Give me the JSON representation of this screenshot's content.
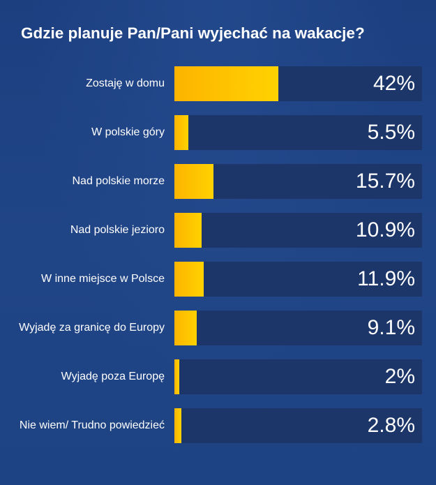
{
  "chart_data": {
    "type": "bar",
    "title": "Gdzie planuje Pan/Pani wyjechać na wakacje?",
    "categories": [
      "Zostaję w domu",
      "W polskie góry",
      "Nad polskie morze",
      "Nad polskie jezioro",
      "W inne miejsce w Polsce",
      "Wyjadę za granicę do Europy",
      "Wyjadę poza Europę",
      "Nie wiem/ Trudno powiedzieć"
    ],
    "values": [
      42,
      5.5,
      15.7,
      10.9,
      11.9,
      9.1,
      2,
      2.8
    ],
    "value_labels": [
      "42%",
      "5.5%",
      "15.7%",
      "10.9%",
      "11.9%",
      "9.1%",
      "2%",
      "2.8%"
    ],
    "unit": "%",
    "xlim": [
      0,
      100
    ],
    "orientation": "horizontal",
    "grid": false,
    "legend": "none",
    "bar_color": "#ffc400",
    "track_color": "#1c3669",
    "background_color": "#1f4283"
  }
}
